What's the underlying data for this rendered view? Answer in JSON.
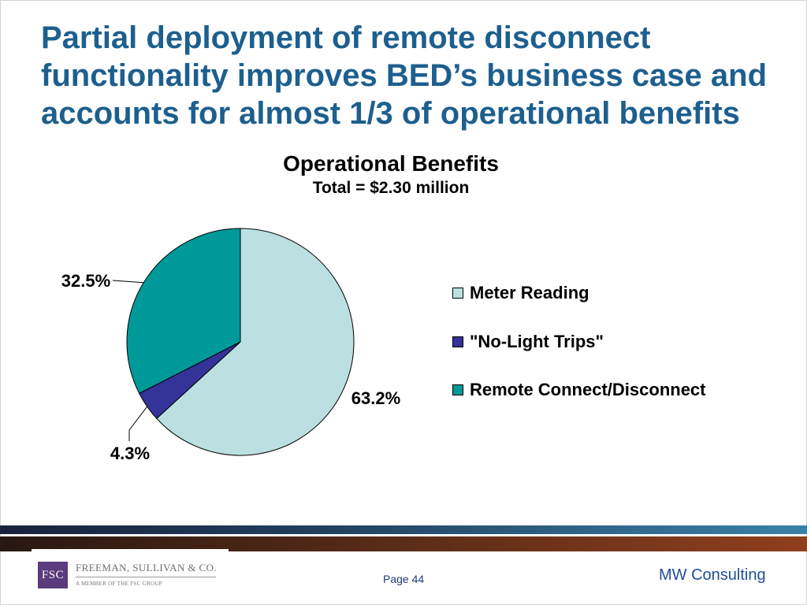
{
  "slide": {
    "title_lines": [
      "Partial deployment of remote disconnect",
      "functionality improves BED’s business case and",
      "accounts for almost 1/3 of operational benefits"
    ]
  },
  "chart_data": {
    "type": "pie",
    "title": "Operational Benefits",
    "subtitle": "Total = $2.30 million",
    "categories": [
      "Meter Reading",
      "\"No-Light Trips\"",
      "Remote Connect/Disconnect"
    ],
    "values": [
      63.2,
      4.3,
      32.5
    ],
    "data_labels": [
      "63.2%",
      "4.3%",
      "32.5%"
    ],
    "colors": [
      "#bce0e2",
      "#333399",
      "#009999"
    ],
    "legend_position": "right"
  },
  "footer": {
    "page": "Page 44",
    "company": "MW Consulting",
    "logo": {
      "mark": "FSC",
      "name": "FREEMAN, SULLIVAN & CO.",
      "tagline": "A MEMBER OF THE FSC GROUP"
    }
  }
}
